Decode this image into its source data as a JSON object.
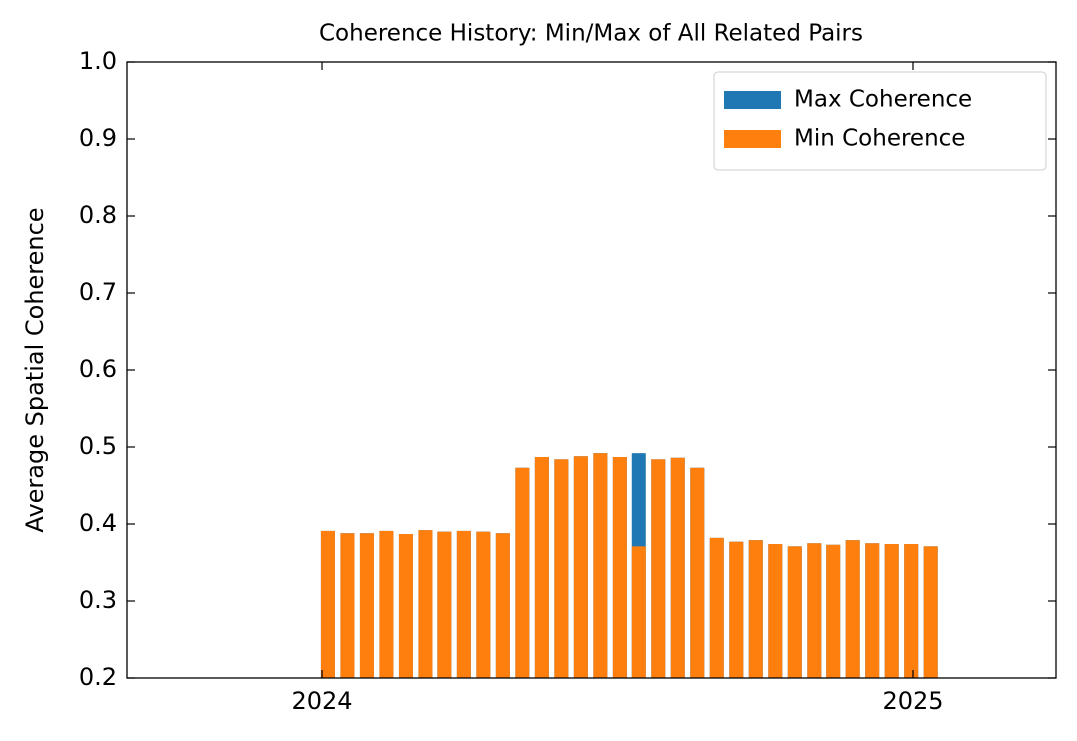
{
  "chart_data": {
    "type": "bar",
    "title": "Coherence History: Min/Max of All Related Pairs",
    "y_label": "Average Spatial Coherence",
    "x": [
      2024.01,
      2024.043,
      2024.076,
      2024.109,
      2024.142,
      2024.175,
      2024.207,
      2024.24,
      2024.273,
      2024.306,
      2024.339,
      2024.372,
      2024.405,
      2024.438,
      2024.471,
      2024.504,
      2024.536,
      2024.569,
      2024.602,
      2024.635,
      2024.668,
      2024.701,
      2024.734,
      2024.767,
      2024.8,
      2024.833,
      2024.865,
      2024.898,
      2024.931,
      2024.964,
      2024.997,
      2025.03
    ],
    "series": [
      {
        "name": "Max Coherence",
        "color": "#1f77b4",
        "values": [
          0.391,
          0.388,
          0.388,
          0.391,
          0.387,
          0.392,
          0.39,
          0.391,
          0.39,
          0.388,
          0.473,
          0.487,
          0.484,
          0.488,
          0.492,
          0.487,
          0.492,
          0.484,
          0.486,
          0.473,
          0.382,
          0.377,
          0.379,
          0.374,
          0.371,
          0.375,
          0.373,
          0.379,
          0.375,
          0.374,
          0.374,
          0.371
        ]
      },
      {
        "name": "Min Coherence",
        "color": "#ff7f0e",
        "values": [
          0.391,
          0.388,
          0.388,
          0.391,
          0.387,
          0.392,
          0.39,
          0.391,
          0.39,
          0.388,
          0.473,
          0.487,
          0.484,
          0.488,
          0.492,
          0.487,
          0.371,
          0.484,
          0.486,
          0.473,
          0.382,
          0.377,
          0.379,
          0.374,
          0.371,
          0.375,
          0.373,
          0.379,
          0.375,
          0.374,
          0.374,
          0.371
        ]
      }
    ],
    "xlim": [
      2023.67,
      2025.242
    ],
    "xticks": [
      2024,
      2025
    ],
    "ylim": [
      0.2,
      1.0
    ],
    "yticks": [
      0.2,
      0.3,
      0.4,
      0.5,
      0.6,
      0.7,
      0.8,
      0.9,
      {
        "value": 1.0,
        "label": "1.0"
      }
    ],
    "grid": false,
    "legend": "upper right"
  }
}
